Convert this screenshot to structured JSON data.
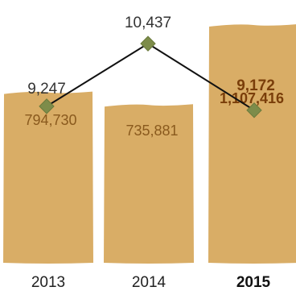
{
  "chart_data": {
    "type": "bar",
    "categories": [
      "2013",
      "2014",
      "2015"
    ],
    "highlight_category": "2015",
    "series": [
      {
        "type": "bar",
        "values": [
          794730,
          735881,
          1107416
        ],
        "labels": [
          "794,730",
          "735,881",
          "1,107,416"
        ],
        "color": "#d9ad66"
      },
      {
        "type": "line",
        "values": [
          9247,
          10437,
          9172
        ],
        "labels": [
          "9,247",
          "10,437",
          "9,172"
        ],
        "color": "#7d8c4a"
      }
    ],
    "title": "",
    "xlabel": "",
    "ylabel": "",
    "grid": false,
    "legend": "none"
  }
}
